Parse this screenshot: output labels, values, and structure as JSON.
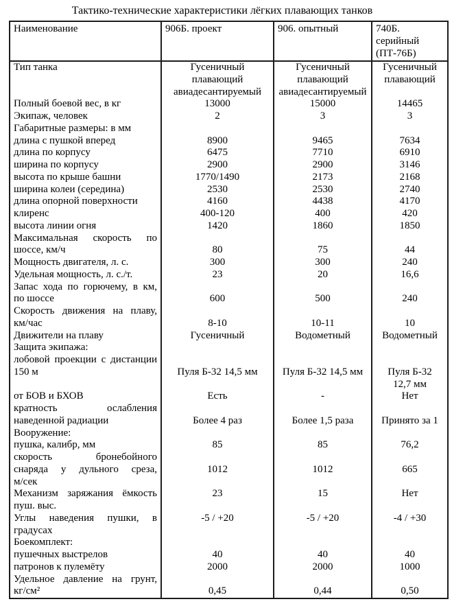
{
  "page": {
    "title": "Тактико-технические характеристики лёгких плавающих танков"
  },
  "table": {
    "header": {
      "name": "Наименование",
      "col2": "906Б. проект",
      "col3": "906. опытный",
      "col4_lines": [
        "740Б.",
        "серийный",
        "(ПТ-76Б)"
      ]
    },
    "lines": [
      {
        "l": "Тип танка",
        "j": false,
        "v": [
          "Гусеничный",
          "Гусеничный",
          "Гусеничный"
        ]
      },
      {
        "l": "",
        "j": false,
        "v": [
          "плавающий",
          "плавающий",
          "плавающий"
        ]
      },
      {
        "l": "",
        "j": false,
        "v": [
          "авиадесантируемый",
          "авиадесантируемый",
          ""
        ]
      },
      {
        "l": "Полный боевой вес, в кг",
        "j": false,
        "v": [
          "13000",
          "15000",
          "14465"
        ]
      },
      {
        "l": "Экипаж, человек",
        "j": false,
        "v": [
          "2",
          "3",
          "3"
        ]
      },
      {
        "l": "Габаритные размеры: в мм",
        "j": false,
        "v": [
          "",
          "",
          ""
        ]
      },
      {
        "l": "длина с пушкой вперед",
        "j": false,
        "v": [
          "8900",
          "9465",
          "7634"
        ]
      },
      {
        "l": "длина по корпусу",
        "j": false,
        "v": [
          "6475",
          "7710",
          "6910"
        ]
      },
      {
        "l": "ширина по корпусу",
        "j": false,
        "v": [
          "2900",
          "2900",
          "3146"
        ]
      },
      {
        "l": "высота по крыше башни",
        "j": false,
        "v": [
          "1770/1490",
          "2173",
          "2168"
        ]
      },
      {
        "l": "ширина колеи (середина)",
        "j": false,
        "v": [
          "2530",
          "2530",
          "2740"
        ]
      },
      {
        "l": "длина опорной поверхности",
        "j": false,
        "v": [
          "4160",
          "4438",
          "4170"
        ]
      },
      {
        "l": "клиренс",
        "j": false,
        "v": [
          "400-120",
          "400",
          "420"
        ]
      },
      {
        "l": "высота линии огня",
        "j": false,
        "v": [
          "1420",
          "1860",
          "1850"
        ]
      },
      {
        "l": "Максимальная скорость по",
        "j": true,
        "v": [
          "",
          "",
          ""
        ]
      },
      {
        "l": "шоссе, км/ч",
        "j": false,
        "v": [
          "80",
          "75",
          "44"
        ]
      },
      {
        "l": "Мощность двигателя, л. с.",
        "j": false,
        "v": [
          "300",
          "300",
          "240"
        ]
      },
      {
        "l": "Удельная мощность, л. с./т.",
        "j": false,
        "v": [
          "23",
          "20",
          "16,6"
        ]
      },
      {
        "l": "Запас хода по горючему, в км,",
        "j": true,
        "v": [
          "",
          "",
          ""
        ]
      },
      {
        "l": "по шоссе",
        "j": false,
        "v": [
          "600",
          "500",
          "240"
        ]
      },
      {
        "l": "Скорость движения на плаву,",
        "j": true,
        "v": [
          "",
          "",
          ""
        ]
      },
      {
        "l": "км/час",
        "j": false,
        "v": [
          "8-10",
          "10-11",
          "10"
        ]
      },
      {
        "l": "Движители на плаву",
        "j": false,
        "v": [
          "Гусеничный",
          "Водометный",
          "Водометный"
        ]
      },
      {
        "l": "Защита экипажа:",
        "j": false,
        "v": [
          "",
          "",
          ""
        ]
      },
      {
        "l": "лобовой проекции с дистанции",
        "j": true,
        "v": [
          "",
          "",
          ""
        ]
      },
      {
        "l": "150 м",
        "j": false,
        "v": [
          "Пуля Б-32 14,5 мм",
          "Пуля Б-32 14,5 мм",
          "Пуля Б-32"
        ]
      },
      {
        "l": "",
        "j": false,
        "v": [
          "",
          "",
          "12,7 мм"
        ]
      },
      {
        "l": "от БОВ и БХОВ",
        "j": false,
        "v": [
          "Есть",
          "-",
          "Нет"
        ]
      },
      {
        "l": "кратность ослабления",
        "j": true,
        "v": [
          "",
          "",
          ""
        ]
      },
      {
        "l": "наведенной радиации",
        "j": false,
        "v": [
          "Более 4 раз",
          "Более 1,5 раза",
          "Принято за 1"
        ]
      },
      {
        "l": "Вооружение:",
        "j": false,
        "v": [
          "",
          "",
          ""
        ]
      },
      {
        "l": "пушка, калибр, мм",
        "j": false,
        "v": [
          "85",
          "85",
          "76,2"
        ]
      },
      {
        "l": "скорость бронебойного",
        "j": true,
        "v": [
          "",
          "",
          ""
        ]
      },
      {
        "l": "снаряда у дульного среза,",
        "j": true,
        "v": [
          "1012",
          "1012",
          "665"
        ]
      },
      {
        "l": "м/сек",
        "j": false,
        "v": [
          "",
          "",
          ""
        ]
      },
      {
        "l": "Механизм заряжания ёмкость",
        "j": true,
        "v": [
          "23",
          "15",
          "Нет"
        ]
      },
      {
        "l": "пуш. выс.",
        "j": false,
        "v": [
          "",
          "",
          ""
        ]
      },
      {
        "l": "Углы наведения пушки, в",
        "j": true,
        "v": [
          "-5 / +20",
          "-5 / +20",
          "-4 / +30"
        ]
      },
      {
        "l": "градусах",
        "j": false,
        "v": [
          "",
          "",
          ""
        ]
      },
      {
        "l": "Боекомплект:",
        "j": false,
        "v": [
          "",
          "",
          ""
        ]
      },
      {
        "l": "пушечных выстрелов",
        "j": false,
        "v": [
          "40",
          "40",
          "40"
        ]
      },
      {
        "l": "патронов к пулемёту",
        "j": false,
        "v": [
          "2000",
          "2000",
          "1000"
        ]
      },
      {
        "l": "Удельное давление на грунт,",
        "j": true,
        "v": [
          "",
          "",
          ""
        ]
      },
      {
        "l": "кг/см²",
        "j": false,
        "v": [
          "0,45",
          "0,44",
          "0,50"
        ]
      }
    ]
  }
}
